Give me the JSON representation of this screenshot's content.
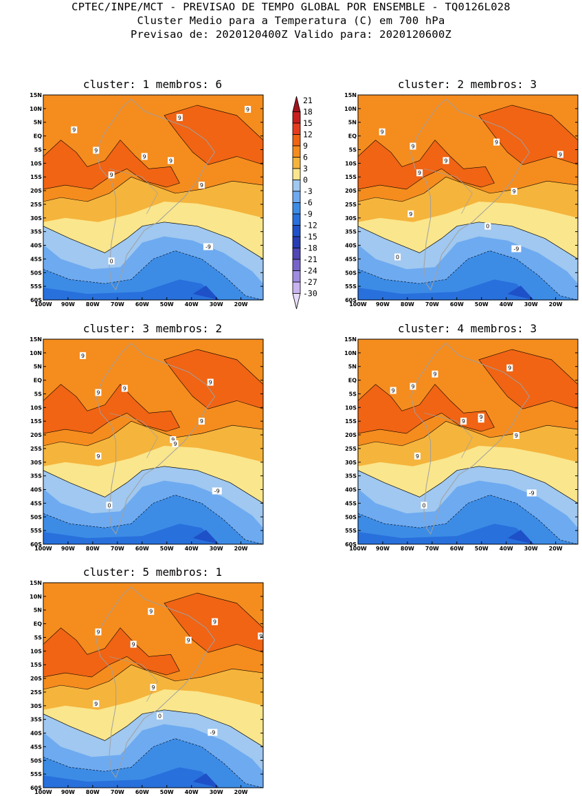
{
  "header": {
    "line1": "CPTEC/INPE/MCT - PREVISAO DE TEMPO GLOBAL POR ENSEMBLE - TQ0126L028",
    "line2": "Cluster Medio para a Temperatura (C) em 700 hPa",
    "line3": "Previsao de: 2020120400Z   Valido para: 2020120600Z"
  },
  "panels": [
    {
      "title": "cluster: 1  membros: 6",
      "labels": [
        "9",
        "9",
        "9",
        "9",
        "9",
        "9",
        "9",
        "9",
        "0",
        "-9"
      ]
    },
    {
      "title": "cluster: 2  membros: 3",
      "labels": [
        "9",
        "9",
        "9",
        "9",
        "9",
        "9",
        "9",
        "9",
        "0",
        "0",
        "-9"
      ]
    },
    {
      "title": "cluster: 3  membros: 2",
      "labels": [
        "9",
        "9",
        "9",
        "9",
        "9",
        "9",
        "9",
        "9",
        "0",
        "-9"
      ]
    },
    {
      "title": "cluster: 4  membros: 3",
      "labels": [
        "9",
        "9",
        "9",
        "9",
        "9",
        "9",
        "9",
        "9",
        "9",
        "0",
        "-9"
      ]
    },
    {
      "title": "cluster: 5  membros: 1",
      "labels": [
        "9",
        "9",
        "9",
        "9",
        "9",
        "9",
        "9",
        "9",
        "0",
        "-9"
      ]
    }
  ],
  "axes": {
    "lat_labels": [
      "15N",
      "10N",
      "5N",
      "EQ",
      "5S",
      "10S",
      "15S",
      "20S",
      "25S",
      "30S",
      "35S",
      "40S",
      "45S",
      "50S",
      "55S",
      "60S"
    ],
    "lon_labels": [
      "100W",
      "90W",
      "80W",
      "70W",
      "60W",
      "50W",
      "40W",
      "30W",
      "20W"
    ]
  },
  "colorbar": {
    "labels": [
      "21",
      "18",
      "15",
      "12",
      "9",
      "6",
      "3",
      "0",
      "-3",
      "-6",
      "-9",
      "-12",
      "-15",
      "-18",
      "-21",
      "-24",
      "-27",
      "-30"
    ],
    "colors": [
      "#a0141e",
      "#c81e1e",
      "#e63c1e",
      "#f06414",
      "#f58c1e",
      "#f5b43c",
      "#fae68c",
      "#a0c8f0",
      "#6eaaf0",
      "#3c8ce6",
      "#2870dc",
      "#1e50c8",
      "#283cb4",
      "#5046b4",
      "#7864c8",
      "#a08ce1",
      "#c8b4f0",
      "#e6dcfa"
    ]
  },
  "colors": {
    "warm1": "#fae68c",
    "warm2": "#f5b43c",
    "warm3": "#f58c1e",
    "warm4": "#f06414",
    "cold1": "#a0c8f0",
    "cold2": "#6eaaf0",
    "cold3": "#3c8ce6",
    "cold4": "#2870dc",
    "cold5": "#1e50c8",
    "coast": "#a0a0a0"
  }
}
